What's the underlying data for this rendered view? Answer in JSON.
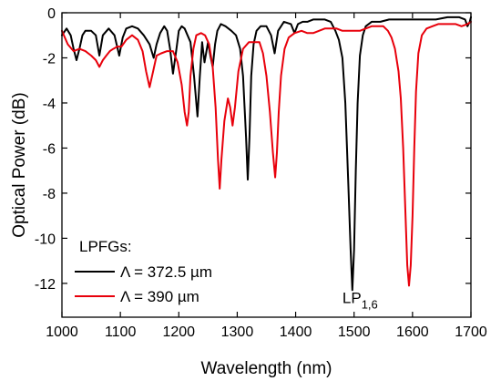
{
  "chart_data": {
    "type": "line",
    "xlabel": "Wavelength (nm)",
    "ylabel": "Optical Power (dB)",
    "xlim": [
      1000,
      1700
    ],
    "ylim": [
      -13.5,
      0
    ],
    "xticks": [
      1000,
      1100,
      1200,
      1300,
      1400,
      1500,
      1600,
      1700
    ],
    "yticks": [
      0,
      -2,
      -4,
      -6,
      -8,
      -10,
      -12
    ],
    "grid": false,
    "legend": {
      "title": "LPFGs:",
      "placement": "bottom-left",
      "entries": [
        "Λ = 372.5 µm",
        "Λ = 390 µm"
      ]
    },
    "annotation": {
      "base": "LP",
      "subscript": "1,6",
      "x": 1505,
      "y": -12.6
    },
    "series": [
      {
        "name": "Λ = 372.5 µm",
        "color": "#000000",
        "x": [
          1000,
          1008,
          1015,
          1020,
          1025,
          1030,
          1035,
          1040,
          1050,
          1058,
          1064,
          1070,
          1080,
          1090,
          1098,
          1104,
          1110,
          1120,
          1130,
          1140,
          1150,
          1157,
          1162,
          1168,
          1175,
          1180,
          1185,
          1190,
          1196,
          1200,
          1205,
          1210,
          1220,
          1226,
          1232,
          1236,
          1240,
          1244,
          1250,
          1254,
          1258,
          1262,
          1266,
          1272,
          1280,
          1290,
          1298,
          1305,
          1310,
          1315,
          1318,
          1321,
          1324,
          1328,
          1333,
          1340,
          1350,
          1358,
          1364,
          1370,
          1380,
          1392,
          1398,
          1404,
          1412,
          1420,
          1430,
          1440,
          1450,
          1460,
          1468,
          1474,
          1480,
          1485,
          1490,
          1494,
          1497,
          1500,
          1503,
          1506,
          1510,
          1515,
          1520,
          1530,
          1545,
          1560,
          1570,
          1580,
          1590,
          1600,
          1620,
          1640,
          1660,
          1680,
          1690,
          1694,
          1698,
          1700
        ],
        "y": [
          -1.0,
          -0.7,
          -1.0,
          -1.6,
          -2.1,
          -1.6,
          -1.0,
          -0.8,
          -0.8,
          -1.0,
          -1.9,
          -1.0,
          -0.7,
          -1.0,
          -1.9,
          -1.1,
          -0.7,
          -0.6,
          -0.7,
          -1.0,
          -1.4,
          -2.0,
          -1.4,
          -0.9,
          -0.6,
          -0.8,
          -1.6,
          -2.7,
          -1.6,
          -0.8,
          -0.6,
          -0.7,
          -1.3,
          -2.8,
          -4.6,
          -2.8,
          -1.3,
          -2.2,
          -1.3,
          -1.9,
          -2.4,
          -1.4,
          -0.8,
          -0.5,
          -0.6,
          -0.8,
          -1.0,
          -1.6,
          -2.8,
          -5.5,
          -7.4,
          -5.5,
          -2.8,
          -1.4,
          -0.8,
          -0.6,
          -0.6,
          -1.0,
          -1.8,
          -0.8,
          -0.4,
          -0.5,
          -0.9,
          -0.5,
          -0.4,
          -0.4,
          -0.3,
          -0.3,
          -0.3,
          -0.4,
          -0.8,
          -1.2,
          -2.0,
          -4.0,
          -7.5,
          -10.5,
          -12.3,
          -10.5,
          -7.0,
          -4.0,
          -1.9,
          -1.0,
          -0.6,
          -0.4,
          -0.4,
          -0.3,
          -0.3,
          -0.3,
          -0.3,
          -0.3,
          -0.3,
          -0.3,
          -0.2,
          -0.2,
          -0.3,
          -0.6,
          -0.4,
          -0.2
        ]
      },
      {
        "name": "Λ = 390 µm",
        "color": "#e8000b",
        "x": [
          1000,
          1010,
          1020,
          1030,
          1040,
          1050,
          1058,
          1064,
          1070,
          1076,
          1082,
          1088,
          1095,
          1102,
          1110,
          1120,
          1130,
          1138,
          1144,
          1150,
          1156,
          1162,
          1170,
          1180,
          1190,
          1198,
          1205,
          1210,
          1214,
          1217,
          1220,
          1225,
          1230,
          1238,
          1245,
          1252,
          1258,
          1263,
          1267,
          1270,
          1273,
          1278,
          1284,
          1288,
          1292,
          1296,
          1302,
          1310,
          1320,
          1330,
          1338,
          1344,
          1350,
          1356,
          1361,
          1365,
          1368,
          1371,
          1375,
          1381,
          1388,
          1398,
          1410,
          1420,
          1430,
          1440,
          1450,
          1460,
          1470,
          1480,
          1490,
          1500,
          1510,
          1520,
          1530,
          1540,
          1550,
          1558,
          1564,
          1570,
          1576,
          1580,
          1584,
          1588,
          1591,
          1594,
          1597,
          1600,
          1603,
          1606,
          1610,
          1616,
          1624,
          1634,
          1644,
          1654,
          1664,
          1674,
          1684,
          1694,
          1700
        ],
        "y": [
          -0.8,
          -1.4,
          -1.7,
          -1.6,
          -1.7,
          -1.9,
          -2.1,
          -2.4,
          -2.1,
          -1.9,
          -1.7,
          -1.6,
          -1.5,
          -1.5,
          -1.2,
          -1.0,
          -1.2,
          -1.7,
          -2.6,
          -3.3,
          -2.6,
          -1.9,
          -1.8,
          -1.7,
          -1.7,
          -2.2,
          -3.2,
          -4.4,
          -5.0,
          -4.4,
          -2.8,
          -1.6,
          -1.0,
          -0.9,
          -1.0,
          -1.4,
          -2.4,
          -4.2,
          -6.5,
          -7.8,
          -6.5,
          -4.8,
          -3.8,
          -4.2,
          -5.0,
          -4.2,
          -2.6,
          -1.6,
          -1.3,
          -1.3,
          -1.3,
          -1.8,
          -2.8,
          -4.4,
          -6.2,
          -7.3,
          -6.2,
          -4.4,
          -2.8,
          -1.6,
          -1.1,
          -0.9,
          -0.8,
          -0.9,
          -0.9,
          -0.8,
          -0.7,
          -0.7,
          -0.7,
          -0.8,
          -0.8,
          -0.8,
          -0.8,
          -0.7,
          -0.6,
          -0.6,
          -0.6,
          -0.8,
          -1.1,
          -1.6,
          -2.6,
          -3.8,
          -6.0,
          -9.0,
          -11.2,
          -12.1,
          -11.2,
          -9.0,
          -6.0,
          -3.5,
          -1.8,
          -1.0,
          -0.7,
          -0.6,
          -0.5,
          -0.5,
          -0.5,
          -0.5,
          -0.6,
          -0.5,
          -0.4
        ]
      }
    ]
  }
}
